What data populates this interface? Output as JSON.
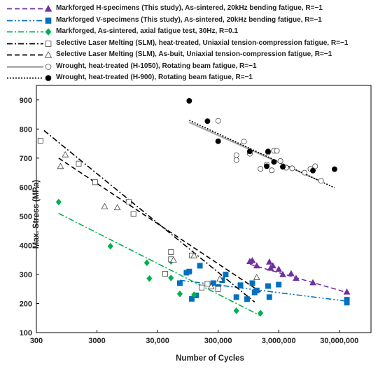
{
  "chart_data": {
    "type": "scatter",
    "xlabel": "Number of Cycles",
    "ylabel": "Max. Stress  (MPa)",
    "xscale": "log",
    "xlim": [
      300,
      100000000
    ],
    "ylim": [
      100,
      950
    ],
    "x_ticks": [
      300,
      3000,
      30000,
      300000,
      3000000,
      30000000
    ],
    "x_tick_labels": [
      "300",
      "3000",
      "30,000",
      "300,000",
      "3,000,000",
      "30,000,000"
    ],
    "y_ticks": [
      100,
      200,
      300,
      400,
      500,
      600,
      700,
      800,
      900
    ],
    "grid": false,
    "legend_position": "top",
    "series": [
      {
        "name": "Markforged H-specimens (This study), As-sintered, 20kHz bending fatigue, R=−1",
        "color": "#7030a0",
        "marker": "triangle-filled",
        "line_style": "dashed",
        "points": [
          [
            1000000,
            345
          ],
          [
            1100000,
            348
          ],
          [
            1300000,
            330
          ],
          [
            2100000,
            343
          ],
          [
            2200000,
            322
          ],
          [
            2400000,
            330
          ],
          [
            3000000,
            318
          ],
          [
            3500000,
            300
          ],
          [
            4800000,
            303
          ],
          [
            5800000,
            287
          ],
          [
            11000000,
            272
          ],
          [
            40000000,
            240
          ]
        ],
        "fit": [
          [
            1000000,
            335
          ],
          [
            40000000,
            238
          ]
        ]
      },
      {
        "name": "Markforged V-specimens (This study), As-sintered, 20kHz bending fatigue, R=−1",
        "color": "#0070c0",
        "marker": "square-filled",
        "line_style": "dash-dot-dot",
        "points": [
          [
            70000,
            270
          ],
          [
            90000,
            306
          ],
          [
            100000,
            310
          ],
          [
            110000,
            216
          ],
          [
            130000,
            228
          ],
          [
            150000,
            330
          ],
          [
            250000,
            270
          ],
          [
            300000,
            257
          ],
          [
            350000,
            280
          ],
          [
            400000,
            300
          ],
          [
            600000,
            222
          ],
          [
            700000,
            263
          ],
          [
            900000,
            215
          ],
          [
            1100000,
            270
          ],
          [
            1200000,
            238
          ],
          [
            1300000,
            245
          ],
          [
            2000000,
            260
          ],
          [
            2100000,
            222
          ],
          [
            3000000,
            265
          ],
          [
            40000000,
            213
          ],
          [
            40000000,
            203
          ]
        ],
        "fit": [
          [
            70000,
            280
          ],
          [
            40000000,
            208
          ]
        ]
      },
      {
        "name": "Markforged, As-sintered, axial fatigue test, 30Hz,  R=0.1",
        "color": "#00b050",
        "marker": "diamond-filled",
        "line_style": "dash-dot",
        "points": [
          [
            700,
            549
          ],
          [
            5000,
            397
          ],
          [
            20000,
            340
          ],
          [
            22000,
            286
          ],
          [
            50000,
            345
          ],
          [
            50000,
            288
          ],
          [
            70000,
            233
          ],
          [
            120000,
            230
          ],
          [
            600000,
            175
          ],
          [
            1500000,
            167
          ]
        ],
        "fit": [
          [
            700,
            510
          ],
          [
            1500000,
            158
          ]
        ]
      },
      {
        "name": "Selective Laser Melting (SLM), heat-treated, Uniaxial tension-compression fatigue, R=−1",
        "color": "#000000",
        "marker": "square-open",
        "line_style": "dash-dot",
        "points": [
          [
            350,
            760
          ],
          [
            1500,
            681
          ],
          [
            2800,
            617
          ],
          [
            10000,
            550
          ],
          [
            12000,
            508
          ],
          [
            40000,
            302
          ],
          [
            50000,
            377
          ],
          [
            50000,
            352
          ],
          [
            110000,
            365
          ],
          [
            160000,
            255
          ],
          [
            200000,
            268
          ],
          [
            300000,
            250
          ]
        ],
        "fit": [
          [
            400,
            795
          ],
          [
            1200000,
            205
          ]
        ]
      },
      {
        "name": "Selective Laser Melting (SLM), As-buit, Uniaxial tension-compression fatigue, R=−1",
        "color": "#000000",
        "marker": "triangle-open",
        "line_style": "dashed",
        "points": [
          [
            750,
            672
          ],
          [
            900,
            712
          ],
          [
            4000,
            534
          ],
          [
            6500,
            530
          ],
          [
            55000,
            350
          ],
          [
            120000,
            365
          ],
          [
            230000,
            258
          ],
          [
            320000,
            285
          ],
          [
            1300000,
            290
          ]
        ],
        "fit": [
          [
            700,
            700
          ],
          [
            1500000,
            240
          ]
        ]
      },
      {
        "name": "Wrought, heat-treated (H-1050),  Rotating beam fatigue, R=−1",
        "color": "#a6a6a6",
        "marker": "circle-open",
        "line_style": "solid",
        "points": [
          [
            300000,
            828
          ],
          [
            600000,
            710
          ],
          [
            600000,
            693
          ],
          [
            800000,
            757
          ],
          [
            1000000,
            715
          ],
          [
            1500000,
            663
          ],
          [
            1900000,
            678
          ],
          [
            2000000,
            720
          ],
          [
            2300000,
            658
          ],
          [
            2500000,
            725
          ],
          [
            2800000,
            725
          ],
          [
            3200000,
            690
          ],
          [
            4000000,
            667
          ],
          [
            5000000,
            665
          ],
          [
            8000000,
            650
          ],
          [
            10000000,
            663
          ],
          [
            12000000,
            672
          ],
          [
            15000000,
            622
          ]
        ],
        "fit": [
          [
            100000,
            823
          ],
          [
            15000000,
            620
          ]
        ]
      },
      {
        "name": "Wrought, heat-treated (H-900),  Rotating beam fatigue, R=−1",
        "color": "#000000",
        "marker": "circle-filled",
        "line_style": "dotted",
        "points": [
          [
            100000,
            897
          ],
          [
            200000,
            827
          ],
          [
            300000,
            758
          ],
          [
            1000000,
            723
          ],
          [
            1900000,
            672
          ],
          [
            2000000,
            723
          ],
          [
            2500000,
            687
          ],
          [
            3500000,
            670
          ],
          [
            11000000,
            657
          ],
          [
            25000000,
            662
          ]
        ],
        "fit": [
          [
            100000,
            830
          ],
          [
            25000000,
            598
          ]
        ]
      }
    ]
  }
}
